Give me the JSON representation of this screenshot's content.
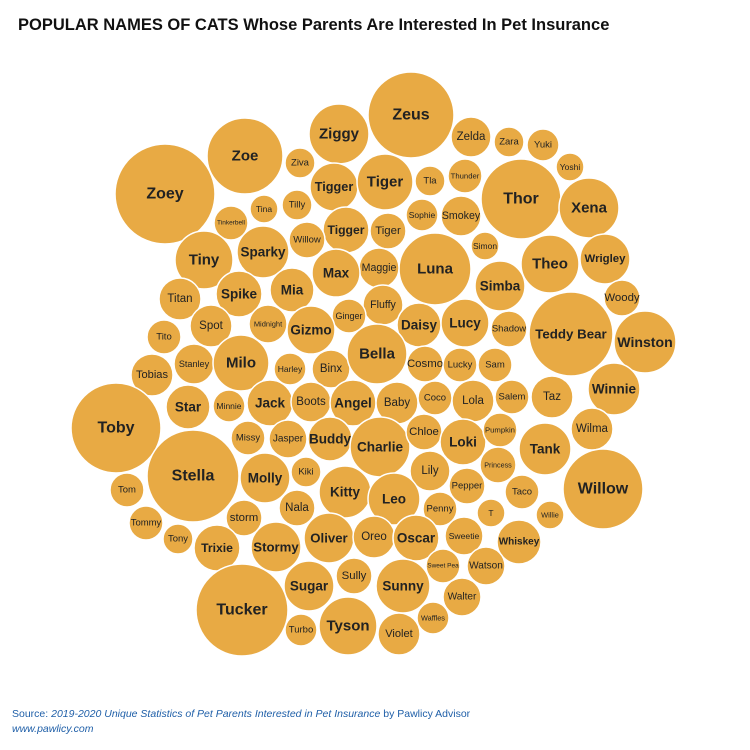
{
  "title": "POPULAR NAMES OF CATS Whose Parents Are Interested In Pet Insurance",
  "source": {
    "prefix": "Source: ",
    "italic": "2019-2020 Unique Statistics of Pet Parents Interested in Pet Insurance",
    "suffix": " by Pawlicy Advisor"
  },
  "site": "www.pawlicy.com",
  "colors": {
    "bubble": "#e8aa44",
    "bubble_stroke": "#ffffff",
    "label": "#222222",
    "source": "#1f5fa8"
  },
  "chart_data": {
    "type": "bubble",
    "title": "POPULAR NAMES OF CATS Whose Parents Are Interested In Pet Insurance",
    "names": [
      "Zeus",
      "Ziggy",
      "Zelda",
      "Zara",
      "Yuki",
      "Yoshi",
      "Zoe",
      "Ziva",
      "Zoey",
      "Thor",
      "Xena",
      "Tigger",
      "Tiger",
      "Tla",
      "Thunder",
      "Tilly",
      "Tina",
      "Tinkerbell",
      "Sophie",
      "Smokey",
      "Tigger",
      "Tiger",
      "Willow",
      "Luna",
      "Simon",
      "Theo",
      "Wrigley",
      "Tiny",
      "Sparky",
      "Maggie",
      "Max",
      "Simba",
      "Woody",
      "Titan",
      "Spike",
      "Mia",
      "Fluffy",
      "Teddy Bear",
      "Winston",
      "Tito",
      "Spot",
      "Midnight",
      "Ginger",
      "Gizmo",
      "Daisy",
      "Lucy",
      "Shadow",
      "Stanley",
      "Milo",
      "Harley",
      "Binx",
      "Bella",
      "Cosmo",
      "Lucky",
      "Sam",
      "Tobias",
      "Winnie",
      "Minnie",
      "Star",
      "Jack",
      "Boots",
      "Angel",
      "Baby",
      "Coco",
      "Lola",
      "Salem",
      "Taz",
      "Toby",
      "Missy",
      "Jasper",
      "Buddy",
      "Charlie",
      "Chloe",
      "Loki",
      "Pumpkin",
      "Wilma",
      "Tank",
      "Stella",
      "Kiki",
      "Molly",
      "Lily",
      "Princess",
      "Tom",
      "Kitty",
      "Pepper",
      "Taco",
      "Willow",
      "Nala",
      "Leo",
      "Penny",
      "T",
      "Willie",
      "Tommy",
      "storm",
      "Oliver",
      "Oreo",
      "Oscar",
      "Sweetie",
      "Whiskey",
      "Tony",
      "Trixie",
      "Stormy",
      "Sweet Pea",
      "Watson",
      "Sully",
      "Sugar",
      "Sunny",
      "Walter",
      "Tucker",
      "Waffles",
      "Turbo",
      "Tyson",
      "Violet"
    ]
  }
}
